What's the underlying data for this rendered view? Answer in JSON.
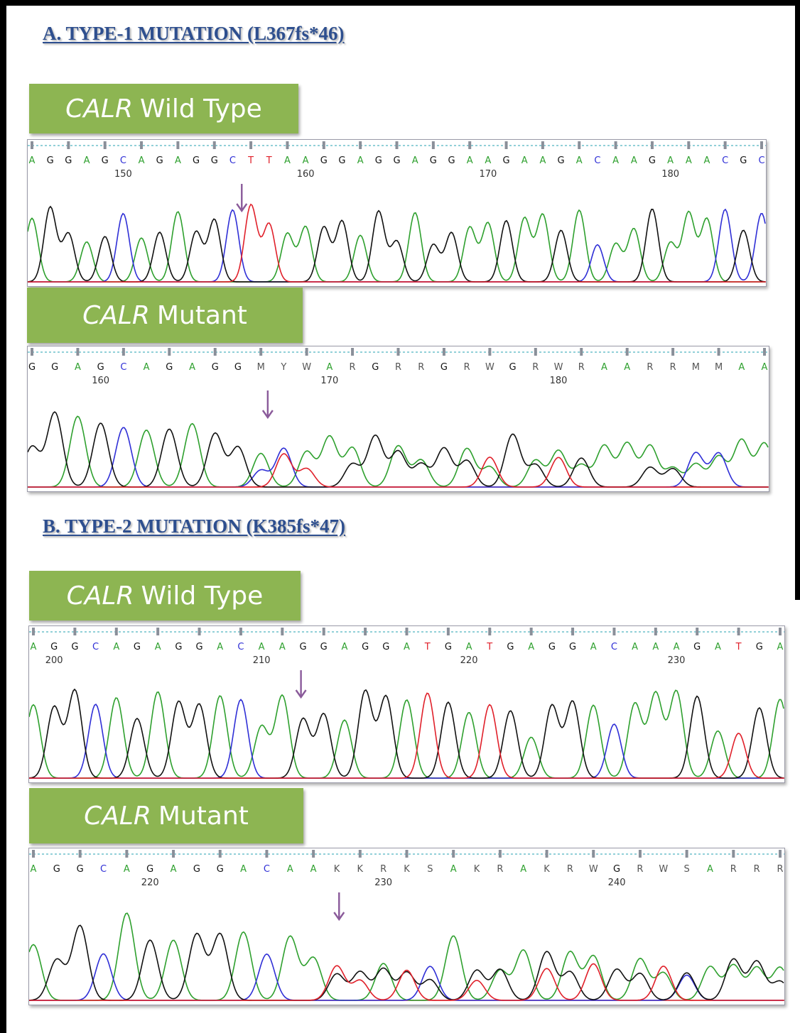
{
  "colors": {
    "heading": "#2e4f8f",
    "label_bg": "#8db552",
    "label_text": "#ffffff",
    "A": "#2ea02e",
    "C": "#2f2fd6",
    "G": "#111111",
    "T": "#e0202a",
    "ambiguous": "#555555",
    "arrow": "#8a5a9a",
    "ruler": "#4fb3c0",
    "baseline": "#d01f2a"
  },
  "sections": [
    {
      "heading": "A. TYPE-1 MUTATION (L367fs*46)",
      "panels": [
        {
          "label_gene": "CALR",
          "label_rest": "Wild Type",
          "bases": "AGGAGCAGAGGCTTAAGGAGGAGGAAGAAGACAAGAAACGC",
          "positions": [
            {
              "index": 5,
              "text": "150"
            },
            {
              "index": 15,
              "text": "160"
            },
            {
              "index": 25,
              "text": "170"
            },
            {
              "index": 35,
              "text": "180"
            }
          ],
          "arrow_index": 11.5,
          "mixed_from": -1,
          "seed": 11
        },
        {
          "label_gene": "CALR",
          "label_rest": "Mutant",
          "bases": "GGAGCAGAGGMYWARGRRGRWGRWRAARRMMAA",
          "positions": [
            {
              "index": 3,
              "text": "160"
            },
            {
              "index": 13,
              "text": "170"
            },
            {
              "index": 23,
              "text": "180"
            }
          ],
          "arrow_index": 10.3,
          "mixed_from": 10,
          "seed": 23
        }
      ]
    },
    {
      "heading": "B. TYPE-2 MUTATION (K385fs*47)",
      "panels": [
        {
          "label_gene": "CALR",
          "label_rest": "Wild Type",
          "bases": "AGGCAGAGGACAAGGAGGATGATGAGGACAAAGATGA",
          "positions": [
            {
              "index": 1,
              "text": "200"
            },
            {
              "index": 11,
              "text": "210"
            },
            {
              "index": 21,
              "text": "220"
            },
            {
              "index": 31,
              "text": "230"
            }
          ],
          "arrow_index": 12.9,
          "mixed_from": -1,
          "seed": 37
        },
        {
          "label_gene": "CALR",
          "label_rest": "Mutant",
          "bases": "AGGCAGAGGACAAKKRKSAKRAKRWGRWSARRR",
          "positions": [
            {
              "index": 5,
              "text": "220"
            },
            {
              "index": 15,
              "text": "230"
            },
            {
              "index": 25,
              "text": "240"
            }
          ],
          "arrow_index": 13.1,
          "mixed_from": 13,
          "seed": 53
        }
      ]
    }
  ]
}
